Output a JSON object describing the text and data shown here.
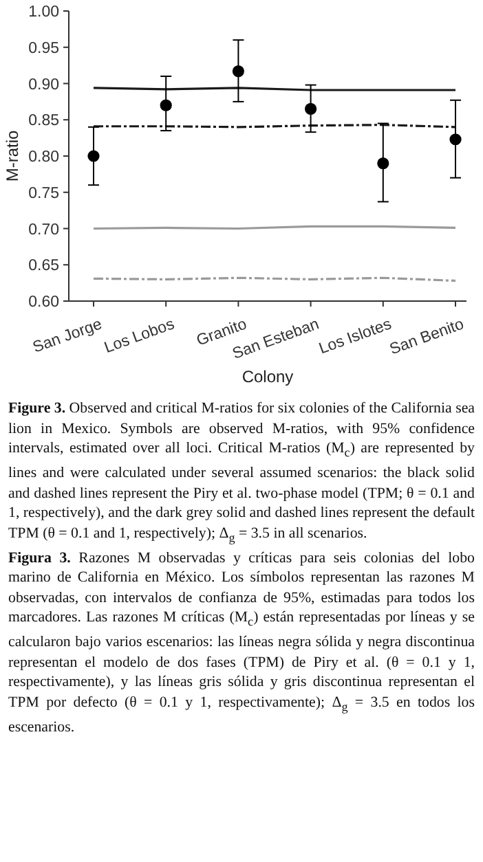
{
  "chart_data": {
    "type": "scatter",
    "xlabel": "Colony",
    "ylabel": "M-ratio",
    "categories": [
      "San Jorge",
      "Los Lobos",
      "Granito",
      "San Esteban",
      "Los Islotes",
      "San Benito"
    ],
    "ylim": [
      0.6,
      1.0
    ],
    "yticks": [
      {
        "value": 0.6,
        "label": "0.60"
      },
      0.65,
      {
        "value": 0.7,
        "label": "0.70"
      },
      0.75,
      {
        "value": 0.8,
        "label": "0.80"
      },
      0.85,
      {
        "value": 0.9,
        "label": "0.90"
      },
      0.95,
      {
        "value": 1.0,
        "label": "1.00"
      }
    ],
    "grid": false,
    "series": [
      {
        "type": "line",
        "color": "#1a1a1a",
        "line_style": "solid",
        "marker": "none",
        "values": [
          0.894,
          0.892,
          0.894,
          0.891,
          0.891,
          0.891
        ]
      },
      {
        "type": "line",
        "color": "#1a1a1a",
        "line_style": "dashed",
        "marker": "none",
        "values": [
          0.841,
          0.841,
          0.84,
          0.842,
          0.843,
          0.84
        ]
      },
      {
        "type": "line",
        "color": "#9a9a9a",
        "line_style": "solid",
        "marker": "none",
        "values": [
          0.7,
          0.701,
          0.7,
          0.703,
          0.703,
          0.701
        ]
      },
      {
        "type": "line",
        "color": "#9a9a9a",
        "line_style": "dashed",
        "marker": "none",
        "values": [
          0.631,
          0.63,
          0.632,
          0.63,
          0.632,
          0.628
        ]
      },
      {
        "color": "#000000",
        "marker": "circle",
        "values": [
          0.8,
          0.87,
          0.917,
          0.865,
          0.79,
          0.823
        ],
        "errors": [
          [
            0.76,
            0.84
          ],
          [
            0.835,
            0.91
          ],
          [
            0.875,
            0.96
          ],
          [
            0.833,
            0.898
          ],
          [
            0.737,
            0.845
          ],
          [
            0.77,
            0.877
          ]
        ]
      }
    ],
    "annotations": [
      "Figure 3. Observed and critical M-ratios for six colonies of the California sea lion in Mexico. Symbols are observed M-ratios, with 95% confidence intervals, estimated over all loci. Critical M-ratios (M$_{c}$) are represented by lines and were calculated under several assumed scenarios: the black solid and dashed lines represent the Piry et al. two-phase model (TPM; θ = 0.1 and 1, respectively), and the dark grey solid and dashed lines represent the default TPM (θ = 0.1 and 1, respectively); Δ$_{g}$ = 3.5 in all scenarios.",
      "Figura 3. Razones M observadas y críticas para seis colonias del lobo marino de California en México. Los símbolos representan las razones M observadas, con intervalos de confianza de 95%, estimadas para todos los marcadores. Las razones M críticas (M$_{c}$) están representadas por líneas y se calcularon bajo varios escenarios: las líneas negra sólida y negra discontinua representan el modelo de dos fases (TPM) de Piry et al. (θ = 0.1 y 1, respectivamente), y las líneas gris sólida y gris discontinua representan el TPM por defecto (θ = 0.1 y 1, respectivamente); Δ$_{g}$ = 3.5 en todos los escenarios."
    ]
  }
}
